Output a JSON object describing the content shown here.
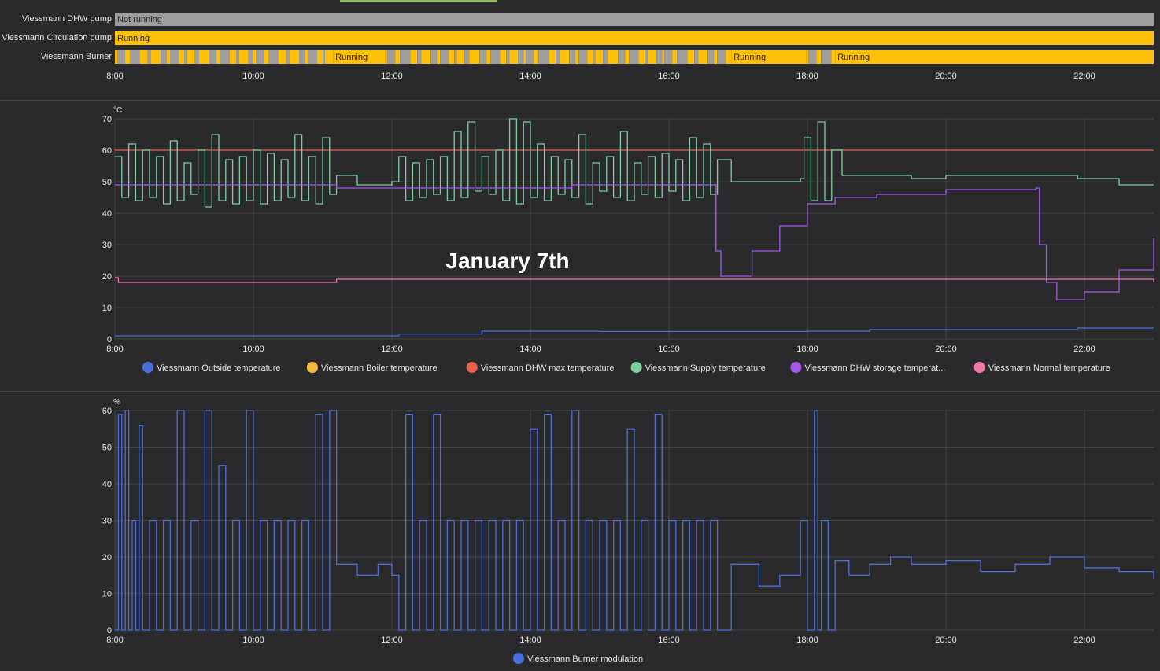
{
  "timeline": {
    "rows": [
      {
        "label": "Viessmann DHW pump",
        "segments": [
          {
            "start": 8.0,
            "end": 23.0,
            "state": "Not running",
            "color": "#9e9e9e",
            "text": "Not running"
          }
        ]
      },
      {
        "label": "Viessmann Circulation pump",
        "segments": [
          {
            "start": 8.0,
            "end": 23.0,
            "state": "Running",
            "color": "#ffc107",
            "text": "Running"
          }
        ]
      },
      {
        "label": "Viessmann Burner",
        "segments": [
          {
            "start": 8.0,
            "end": 11.15,
            "state": "mixed",
            "color": "stripe",
            "text": ""
          },
          {
            "start": 11.15,
            "end": 11.9,
            "state": "Running",
            "color": "#ffc107",
            "text": "Running"
          },
          {
            "start": 11.9,
            "end": 16.9,
            "state": "mixed",
            "color": "stripe",
            "text": ""
          },
          {
            "start": 16.9,
            "end": 17.98,
            "state": "Running",
            "color": "#ffc107",
            "text": "Running"
          },
          {
            "start": 17.98,
            "end": 18.4,
            "state": "mixed",
            "color": "stripe",
            "text": ""
          },
          {
            "start": 18.4,
            "end": 23.0,
            "state": "Running",
            "color": "#ffc107",
            "text": "Running"
          }
        ]
      }
    ],
    "ticks": [
      "8:00",
      "10:00",
      "12:00",
      "14:00",
      "16:00",
      "18:00",
      "20:00",
      "22:00"
    ]
  },
  "chart_data": [
    {
      "type": "line",
      "title": "",
      "ylabel": "°C",
      "ylim": [
        0,
        70
      ],
      "yticks": [
        0,
        10,
        20,
        30,
        40,
        50,
        60,
        70
      ],
      "xlim": [
        8,
        23
      ],
      "xticks": [
        "8:00",
        "10:00",
        "12:00",
        "14:00",
        "16:00",
        "18:00",
        "20:00",
        "22:00"
      ],
      "grid": true,
      "annotation": "January 7th",
      "series": [
        {
          "name": "Viessmann Outside temperature",
          "color": "#4a6fdc",
          "x": [
            8,
            12.1,
            13.3,
            15,
            18,
            18.9,
            21.9,
            23
          ],
          "y": [
            1,
            1.6,
            2.5,
            2.4,
            2.5,
            3,
            3.5,
            3.5
          ]
        },
        {
          "name": "Viessmann Boiler temperature",
          "color": "#f5b942",
          "x": [],
          "y": []
        },
        {
          "name": "Viessmann DHW max temperature",
          "color": "#e8614d",
          "x": [
            8,
            23
          ],
          "y": [
            60,
            60
          ]
        },
        {
          "name": "Viessmann Supply temperature",
          "color": "#7ecfa0",
          "x": [
            8,
            8.1,
            8.2,
            8.3,
            8.4,
            8.5,
            8.6,
            8.7,
            8.8,
            8.9,
            9.0,
            9.1,
            9.2,
            9.3,
            9.4,
            9.5,
            9.6,
            9.7,
            9.8,
            9.9,
            10.0,
            10.1,
            10.2,
            10.3,
            10.4,
            10.5,
            10.6,
            10.7,
            10.8,
            10.9,
            11.0,
            11.1,
            11.2,
            11.5,
            12.0,
            12.1,
            12.2,
            12.3,
            12.4,
            12.5,
            12.6,
            12.7,
            12.8,
            12.9,
            13.0,
            13.1,
            13.2,
            13.3,
            13.4,
            13.5,
            13.6,
            13.7,
            13.8,
            13.9,
            14.0,
            14.1,
            14.2,
            14.3,
            14.4,
            14.5,
            14.6,
            14.7,
            14.8,
            14.9,
            15.0,
            15.1,
            15.2,
            15.3,
            15.4,
            15.5,
            15.6,
            15.7,
            15.8,
            15.9,
            16.0,
            16.1,
            16.2,
            16.3,
            16.4,
            16.5,
            16.6,
            16.7,
            16.9,
            17.5,
            17.9,
            17.95,
            18.05,
            18.15,
            18.25,
            18.35,
            18.5,
            19.0,
            19.5,
            20.0,
            21.0,
            21.9,
            22.5,
            23.0
          ],
          "y": [
            58,
            45,
            62,
            44,
            60,
            45,
            58,
            43,
            63,
            44,
            56,
            46,
            60,
            42,
            65,
            44,
            57,
            43,
            58,
            44,
            60,
            43,
            59,
            44,
            57,
            45,
            65,
            44,
            58,
            43,
            64,
            46,
            52,
            49,
            50,
            58,
            44,
            56,
            45,
            57,
            46,
            58,
            44,
            66,
            45,
            69,
            47,
            58,
            46,
            60,
            44,
            70,
            43,
            69,
            45,
            62,
            44,
            58,
            46,
            57,
            45,
            65,
            43,
            56,
            47,
            58,
            45,
            66,
            44,
            56,
            46,
            58,
            45,
            59,
            47,
            57,
            44,
            64,
            45,
            62,
            46,
            57,
            50,
            50,
            51,
            64,
            44,
            69,
            44,
            60,
            52,
            52,
            51,
            52,
            52,
            51,
            49,
            49
          ]
        },
        {
          "name": "Viessmann DHW storage temperat...",
          "color": "#a259e8",
          "x": [
            8,
            11.2,
            14.6,
            16.6,
            16.68,
            16.75,
            16.85,
            17.2,
            17.6,
            18.0,
            18.4,
            19.0,
            20.0,
            21.3,
            21.35,
            21.45,
            21.6,
            21.8,
            22.0,
            22.5,
            23.0
          ],
          "y": [
            49,
            48,
            49,
            49,
            28,
            20,
            20,
            28,
            36,
            43,
            45,
            46,
            47.5,
            48,
            30,
            18,
            12.5,
            12.5,
            15,
            22,
            32
          ]
        },
        {
          "name": "Viessmann Normal temperature",
          "color": "#f078a8",
          "x": [
            8,
            8.05,
            11.15,
            11.2,
            23
          ],
          "y": [
            19.5,
            18,
            18,
            19,
            18
          ]
        }
      ]
    },
    {
      "type": "line",
      "title": "",
      "ylabel": "%",
      "ylim": [
        0,
        60
      ],
      "yticks": [
        0,
        10,
        20,
        30,
        40,
        50,
        60
      ],
      "xlim": [
        8,
        23
      ],
      "xticks": [
        "8:00",
        "10:00",
        "12:00",
        "14:00",
        "16:00",
        "18:00",
        "20:00",
        "22:00"
      ],
      "grid": true,
      "series": [
        {
          "name": "Viessmann Burner modulation",
          "color": "#4a6fdc",
          "x": [
            8,
            8.05,
            8.1,
            8.15,
            8.2,
            8.25,
            8.3,
            8.35,
            8.4,
            8.5,
            8.6,
            8.7,
            8.8,
            8.9,
            9.0,
            9.1,
            9.2,
            9.3,
            9.4,
            9.5,
            9.6,
            9.7,
            9.8,
            9.9,
            10.0,
            10.1,
            10.2,
            10.3,
            10.4,
            10.5,
            10.6,
            10.7,
            10.8,
            10.9,
            11.0,
            11.1,
            11.2,
            11.5,
            11.8,
            12.0,
            12.1,
            12.2,
            12.3,
            12.4,
            12.5,
            12.6,
            12.7,
            12.8,
            12.9,
            13.0,
            13.1,
            13.2,
            13.3,
            13.4,
            13.5,
            13.6,
            13.7,
            13.8,
            13.9,
            14.0,
            14.1,
            14.2,
            14.3,
            14.4,
            14.5,
            14.6,
            14.7,
            14.8,
            14.9,
            15.0,
            15.1,
            15.2,
            15.3,
            15.4,
            15.5,
            15.6,
            15.7,
            15.8,
            15.9,
            16.0,
            16.1,
            16.2,
            16.3,
            16.4,
            16.5,
            16.6,
            16.7,
            16.9,
            17.3,
            17.6,
            17.9,
            18.0,
            18.1,
            18.15,
            18.2,
            18.3,
            18.4,
            18.6,
            18.9,
            19.2,
            19.5,
            20.0,
            20.5,
            21.0,
            21.5,
            22.0,
            22.5,
            23.0
          ],
          "y": [
            0,
            59,
            0,
            60,
            0,
            30,
            0,
            56,
            0,
            30,
            0,
            30,
            0,
            60,
            0,
            30,
            0,
            60,
            0,
            45,
            0,
            30,
            0,
            60,
            0,
            30,
            0,
            30,
            0,
            30,
            0,
            30,
            0,
            59,
            0,
            60,
            18,
            15,
            18,
            15,
            0,
            59,
            0,
            30,
            0,
            59,
            0,
            30,
            0,
            30,
            0,
            30,
            0,
            30,
            0,
            30,
            0,
            30,
            0,
            55,
            0,
            59,
            0,
            30,
            0,
            60,
            0,
            30,
            0,
            30,
            0,
            30,
            0,
            55,
            0,
            30,
            0,
            59,
            0,
            30,
            0,
            30,
            0,
            30,
            0,
            30,
            0,
            18,
            12,
            15,
            30,
            0,
            60,
            0,
            30,
            0,
            19,
            15,
            18,
            20,
            18,
            19,
            16,
            18,
            20,
            17,
            16,
            14
          ]
        }
      ]
    }
  ]
}
